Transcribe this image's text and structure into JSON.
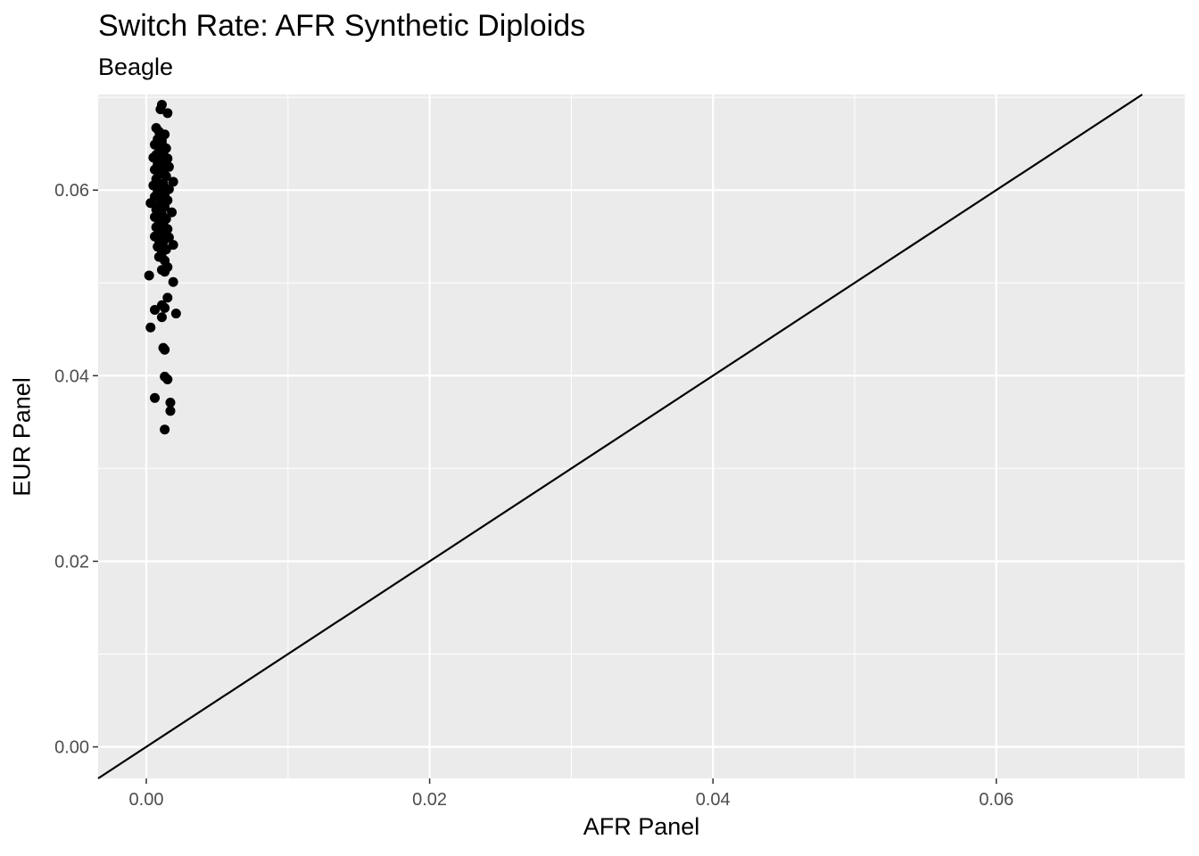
{
  "chart_data": {
    "type": "scatter",
    "title": "Switch Rate: AFR Synthetic Diploids",
    "subtitle": "Beagle",
    "xlabel": "AFR Panel",
    "ylabel": "EUR Panel",
    "xlim": [
      -0.0034,
      0.0733
    ],
    "ylim": [
      -0.0034,
      0.0703
    ],
    "x_ticks": [
      0.0,
      0.02,
      0.04,
      0.06
    ],
    "x_tick_labels": [
      "0.00",
      "0.02",
      "0.04",
      "0.06"
    ],
    "y_ticks": [
      0.0,
      0.02,
      0.04,
      0.06
    ],
    "y_tick_labels": [
      "0.00",
      "0.02",
      "0.04",
      "0.06"
    ],
    "grid": true,
    "background": "#ebebeb",
    "reference_line": {
      "slope": 1,
      "intercept": 0
    },
    "points": [
      {
        "x": 0.0011,
        "y": 0.0692
      },
      {
        "x": 0.001,
        "y": 0.0687
      },
      {
        "x": 0.0015,
        "y": 0.0683
      },
      {
        "x": 0.0007,
        "y": 0.0667
      },
      {
        "x": 0.0009,
        "y": 0.0663
      },
      {
        "x": 0.0013,
        "y": 0.066
      },
      {
        "x": 0.0008,
        "y": 0.0655
      },
      {
        "x": 0.0011,
        "y": 0.0653
      },
      {
        "x": 0.0006,
        "y": 0.0649
      },
      {
        "x": 0.0012,
        "y": 0.0647
      },
      {
        "x": 0.0014,
        "y": 0.0645
      },
      {
        "x": 0.0009,
        "y": 0.0641
      },
      {
        "x": 0.0007,
        "y": 0.0638
      },
      {
        "x": 0.0013,
        "y": 0.0636
      },
      {
        "x": 0.0005,
        "y": 0.0635
      },
      {
        "x": 0.0015,
        "y": 0.0634
      },
      {
        "x": 0.001,
        "y": 0.0632
      },
      {
        "x": 0.0008,
        "y": 0.0628
      },
      {
        "x": 0.0012,
        "y": 0.0626
      },
      {
        "x": 0.0016,
        "y": 0.0625
      },
      {
        "x": 0.0006,
        "y": 0.0622
      },
      {
        "x": 0.0011,
        "y": 0.062
      },
      {
        "x": 0.0009,
        "y": 0.0617
      },
      {
        "x": 0.0014,
        "y": 0.0615
      },
      {
        "x": 0.0007,
        "y": 0.0612
      },
      {
        "x": 0.0019,
        "y": 0.0609
      },
      {
        "x": 0.0012,
        "y": 0.0607
      },
      {
        "x": 0.0005,
        "y": 0.0605
      },
      {
        "x": 0.001,
        "y": 0.0603
      },
      {
        "x": 0.0016,
        "y": 0.0601
      },
      {
        "x": 0.0008,
        "y": 0.0598
      },
      {
        "x": 0.0013,
        "y": 0.0596
      },
      {
        "x": 0.0006,
        "y": 0.0593
      },
      {
        "x": 0.0011,
        "y": 0.0591
      },
      {
        "x": 0.0015,
        "y": 0.0589
      },
      {
        "x": 0.0003,
        "y": 0.0586
      },
      {
        "x": 0.0009,
        "y": 0.0584
      },
      {
        "x": 0.0013,
        "y": 0.0582
      },
      {
        "x": 0.0007,
        "y": 0.0579
      },
      {
        "x": 0.0018,
        "y": 0.0576
      },
      {
        "x": 0.0011,
        "y": 0.0574
      },
      {
        "x": 0.0006,
        "y": 0.0571
      },
      {
        "x": 0.0014,
        "y": 0.0569
      },
      {
        "x": 0.0009,
        "y": 0.0566
      },
      {
        "x": 0.0012,
        "y": 0.0563
      },
      {
        "x": 0.0007,
        "y": 0.056
      },
      {
        "x": 0.0015,
        "y": 0.0558
      },
      {
        "x": 0.001,
        "y": 0.0556
      },
      {
        "x": 0.0013,
        "y": 0.0553
      },
      {
        "x": 0.0006,
        "y": 0.055
      },
      {
        "x": 0.0016,
        "y": 0.0549
      },
      {
        "x": 0.0009,
        "y": 0.0546
      },
      {
        "x": 0.0012,
        "y": 0.0544
      },
      {
        "x": 0.0019,
        "y": 0.0541
      },
      {
        "x": 0.0008,
        "y": 0.0539
      },
      {
        "x": 0.0014,
        "y": 0.0536
      },
      {
        "x": 0.0011,
        "y": 0.0532
      },
      {
        "x": 0.0009,
        "y": 0.0528
      },
      {
        "x": 0.0013,
        "y": 0.0524
      },
      {
        "x": 0.0015,
        "y": 0.0517
      },
      {
        "x": 0.0011,
        "y": 0.0514
      },
      {
        "x": 0.0013,
        "y": 0.0512
      },
      {
        "x": 0.0002,
        "y": 0.0508
      },
      {
        "x": 0.0019,
        "y": 0.0501
      },
      {
        "x": 0.0015,
        "y": 0.0484
      },
      {
        "x": 0.0011,
        "y": 0.0476
      },
      {
        "x": 0.0013,
        "y": 0.0473
      },
      {
        "x": 0.0006,
        "y": 0.0471
      },
      {
        "x": 0.0021,
        "y": 0.0467
      },
      {
        "x": 0.0011,
        "y": 0.0463
      },
      {
        "x": 0.0003,
        "y": 0.0452
      },
      {
        "x": 0.0012,
        "y": 0.043
      },
      {
        "x": 0.0013,
        "y": 0.0428
      },
      {
        "x": 0.0013,
        "y": 0.0399
      },
      {
        "x": 0.0015,
        "y": 0.0396
      },
      {
        "x": 0.0006,
        "y": 0.0376
      },
      {
        "x": 0.0017,
        "y": 0.0371
      },
      {
        "x": 0.0017,
        "y": 0.0362
      },
      {
        "x": 0.0013,
        "y": 0.0342
      }
    ]
  }
}
